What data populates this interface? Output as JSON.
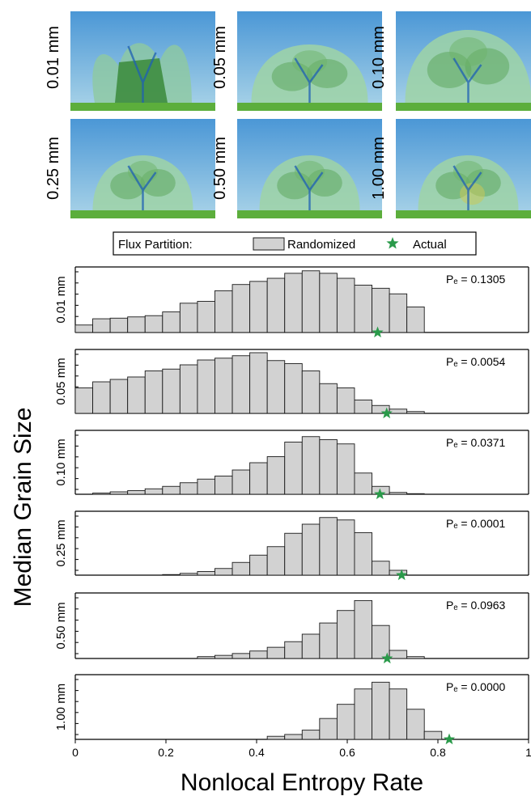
{
  "thumbnails": [
    {
      "label": "0.01 mm",
      "style": "sparse"
    },
    {
      "label": "0.05 mm",
      "style": "medium"
    },
    {
      "label": "0.10 mm",
      "style": "dense"
    },
    {
      "label": "0.25 mm",
      "style": "tree"
    },
    {
      "label": "0.50 mm",
      "style": "tree"
    },
    {
      "label": "1.00 mm",
      "style": "tree-yellow"
    }
  ],
  "legend": {
    "title": "Flux Partition:",
    "randomized_label": "Randomized",
    "actual_label": "Actual"
  },
  "colors": {
    "bar_fill": "#d2d2d2",
    "bar_stroke": "#1a1a1a",
    "star": "#2a9a4a",
    "sky_top": "#4b97d6",
    "sky_bottom": "#aad4e8",
    "ground": "#5cae3c",
    "channel": "#1e5fb4"
  },
  "chart_data": {
    "type": "bar",
    "title": "",
    "xlabel": "Nonlocal Entropy Rate",
    "ylabel": "Median Grain Size",
    "xlim": [
      0,
      1
    ],
    "xticks": [
      "0",
      "0.2",
      "0.4",
      "0.6",
      "0.8",
      "1"
    ],
    "bin_width": 0.0385,
    "panels": [
      {
        "label": "0.01 mm",
        "pe": "Pₑ = 0.1305",
        "actual": 0.667,
        "bins": [
          0,
          0.0385,
          0.077,
          0.1155,
          0.154,
          0.1925,
          0.231,
          0.2695,
          0.308,
          0.3465,
          0.385,
          0.4235,
          0.462,
          0.5005,
          0.539,
          0.5775,
          0.616,
          0.6545,
          0.693,
          0.7315
        ],
        "values": [
          0.12,
          0.22,
          0.23,
          0.25,
          0.27,
          0.33,
          0.47,
          0.5,
          0.67,
          0.77,
          0.82,
          0.87,
          0.95,
          0.99,
          0.95,
          0.87,
          0.76,
          0.71,
          0.62,
          0.41
        ]
      },
      {
        "label": "0.05 mm",
        "pe": "Pₑ = 0.0054",
        "actual": 0.687,
        "bins": [
          0,
          0.0385,
          0.077,
          0.1155,
          0.154,
          0.1925,
          0.231,
          0.2695,
          0.308,
          0.3465,
          0.385,
          0.4235,
          0.462,
          0.5005,
          0.539,
          0.5775,
          0.616,
          0.6545,
          0.693,
          0.7315
        ],
        "values": [
          0.42,
          0.52,
          0.56,
          0.6,
          0.7,
          0.73,
          0.8,
          0.88,
          0.91,
          0.95,
          1.0,
          0.87,
          0.82,
          0.7,
          0.49,
          0.42,
          0.22,
          0.13,
          0.07,
          0.03
        ]
      },
      {
        "label": "0.10 mm",
        "pe": "Pₑ = 0.0371",
        "actual": 0.672,
        "bins": [
          0.0385,
          0.077,
          0.1155,
          0.154,
          0.1925,
          0.231,
          0.2695,
          0.308,
          0.3465,
          0.385,
          0.4235,
          0.462,
          0.5005,
          0.539,
          0.5775,
          0.616,
          0.6545,
          0.693,
          0.7315
        ],
        "values": [
          0.02,
          0.04,
          0.06,
          0.09,
          0.13,
          0.19,
          0.25,
          0.3,
          0.4,
          0.52,
          0.62,
          0.86,
          0.95,
          0.9,
          0.83,
          0.35,
          0.13,
          0.03,
          0.01
        ]
      },
      {
        "label": "0.25 mm",
        "pe": "Pₑ = 0.0001",
        "actual": 0.72,
        "bins": [
          0.1925,
          0.231,
          0.2695,
          0.308,
          0.3465,
          0.385,
          0.4235,
          0.462,
          0.5005,
          0.539,
          0.5775,
          0.616,
          0.6545,
          0.693
        ],
        "values": [
          0.01,
          0.03,
          0.06,
          0.11,
          0.21,
          0.33,
          0.47,
          0.69,
          0.84,
          0.95,
          0.91,
          0.7,
          0.23,
          0.08
        ]
      },
      {
        "label": "0.50 mm",
        "pe": "Pₑ = 0.0963",
        "actual": 0.688,
        "bins": [
          0.2695,
          0.308,
          0.3465,
          0.385,
          0.4235,
          0.462,
          0.5005,
          0.539,
          0.5775,
          0.616,
          0.6545,
          0.693,
          0.7315
        ],
        "values": [
          0.03,
          0.05,
          0.08,
          0.12,
          0.18,
          0.27,
          0.39,
          0.57,
          0.77,
          0.93,
          0.53,
          0.13,
          0.03
        ]
      },
      {
        "label": "1.00 mm",
        "pe": "Pₑ = 0.0000",
        "actual": 0.825,
        "bins": [
          0.4235,
          0.462,
          0.5005,
          0.539,
          0.5775,
          0.616,
          0.6545,
          0.693,
          0.7315,
          0.77
        ],
        "values": [
          0.05,
          0.08,
          0.15,
          0.34,
          0.57,
          0.82,
          0.93,
          0.82,
          0.49,
          0.13
        ]
      }
    ]
  }
}
